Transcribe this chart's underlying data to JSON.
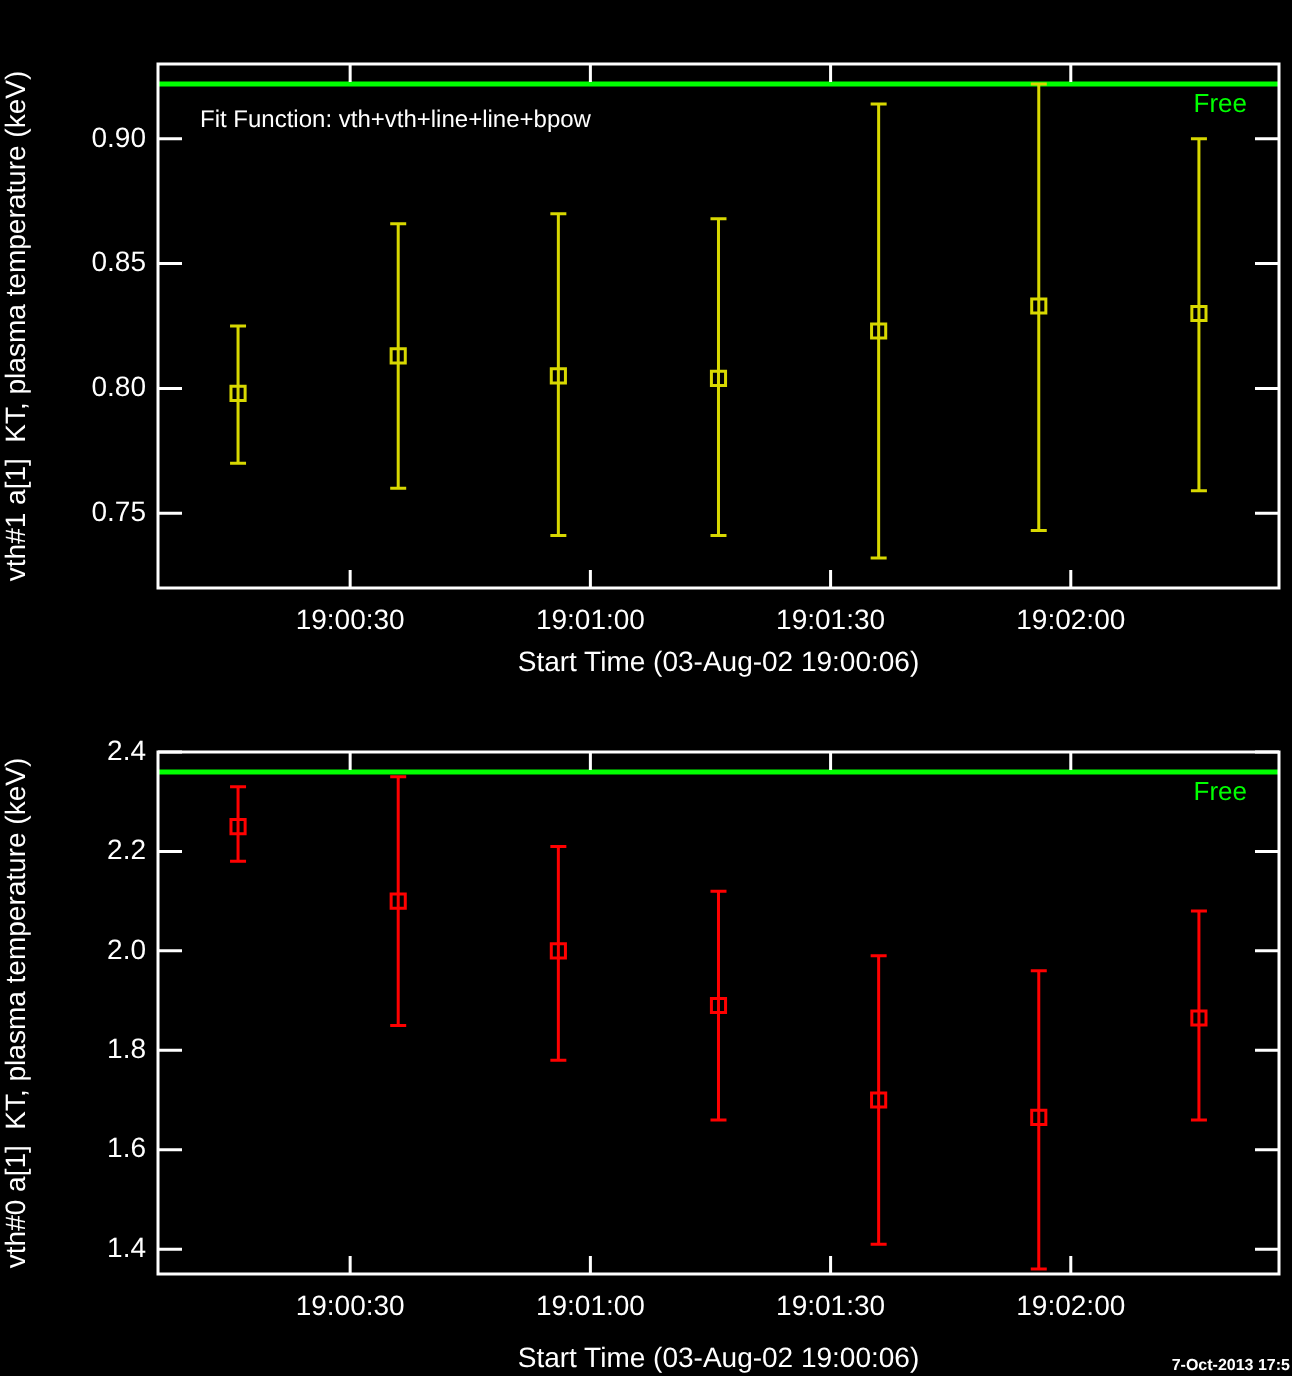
{
  "chart_data": [
    {
      "type": "scatter",
      "xlabel": "Start Time (03-Aug-02 19:00:06)",
      "ylabel": "vth#1 a[1]  KT, plasma temperature (keV)",
      "annotations": [
        "Fit Function: vth+vth+line+line+bpow"
      ],
      "x": [
        19.004444,
        19.01,
        19.015556,
        19.021111,
        19.026667,
        19.032222,
        19.037778
      ],
      "series": [
        {
          "color": "#d8d800",
          "values": [
            0.798,
            0.813,
            0.805,
            0.804,
            0.823,
            0.833,
            0.83
          ],
          "errors": [
            [
              0.77,
              0.825
            ],
            [
              0.76,
              0.866
            ],
            [
              0.741,
              0.87
            ],
            [
              0.741,
              0.868
            ],
            [
              0.732,
              0.914
            ],
            [
              0.743,
              0.922
            ],
            [
              0.759,
              0.9
            ]
          ]
        }
      ],
      "xlim": [
        19.001667,
        19.040556
      ],
      "xticks": [
        {
          "value": 19.008333,
          "label": "19:00:30"
        },
        {
          "value": 19.016667,
          "label": "19:01:00"
        },
        {
          "value": 19.025,
          "label": "19:01:30"
        },
        {
          "value": 19.033333,
          "label": "19:02:00"
        }
      ],
      "ylim": [
        0.72,
        0.93
      ],
      "yticks": [
        {
          "value": 0.75,
          "label": "0.75"
        },
        {
          "value": 0.8,
          "label": "0.80"
        },
        {
          "value": 0.85,
          "label": "0.85"
        },
        {
          "value": 0.9,
          "label": "0.90"
        }
      ],
      "ref_lines": [
        {
          "axis": "y",
          "value": 0.922,
          "label": "Free",
          "color": "#00ff00"
        }
      ],
      "marker": "square",
      "legend": false
    },
    {
      "type": "scatter",
      "xlabel": "Start Time (03-Aug-02 19:00:06)",
      "ylabel": "vth#0 a[1]  KT, plasma temperature (keV)",
      "annotations": [
        "7-Oct-2013 17:5"
      ],
      "x": [
        19.004444,
        19.01,
        19.015556,
        19.021111,
        19.026667,
        19.032222,
        19.037778
      ],
      "series": [
        {
          "color": "#ff0000",
          "values": [
            2.25,
            2.1,
            2.0,
            1.89,
            1.7,
            1.665,
            1.865
          ],
          "errors": [
            [
              2.18,
              2.33
            ],
            [
              1.85,
              2.35
            ],
            [
              1.78,
              2.21
            ],
            [
              1.66,
              2.12
            ],
            [
              1.41,
              1.99
            ],
            [
              1.36,
              1.96
            ],
            [
              1.66,
              2.08
            ]
          ]
        }
      ],
      "xlim": [
        19.001667,
        19.040556
      ],
      "xticks": [
        {
          "value": 19.008333,
          "label": "19:00:30"
        },
        {
          "value": 19.016667,
          "label": "19:01:00"
        },
        {
          "value": 19.025,
          "label": "19:01:30"
        },
        {
          "value": 19.033333,
          "label": "19:02:00"
        }
      ],
      "ylim": [
        1.35,
        2.4
      ],
      "yticks": [
        1.4,
        1.6,
        1.8,
        {
          "value": 2.0,
          "label": "2.0"
        },
        2.2,
        2.4
      ],
      "ref_lines": [
        {
          "axis": "y",
          "value": 2.36,
          "label": "Free",
          "color": "#00ff00"
        }
      ],
      "marker": "square",
      "legend": false
    }
  ]
}
